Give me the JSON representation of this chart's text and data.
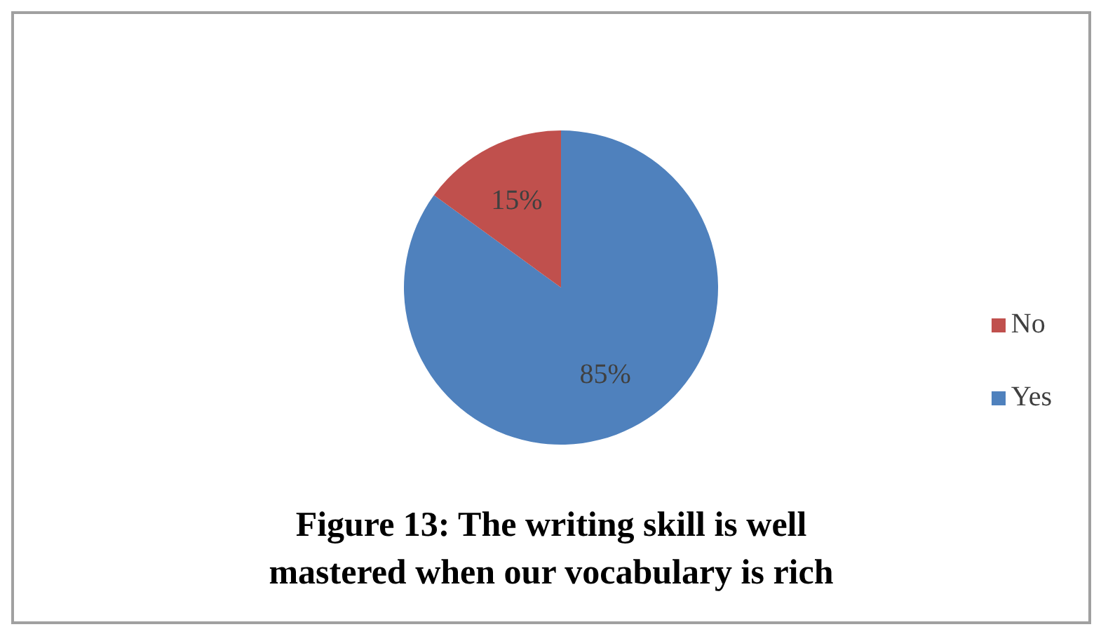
{
  "chart_data": {
    "type": "pie",
    "title": "Figure 13: The writing skill is well mastered when our vocabulary is rich",
    "categories": [
      "Yes",
      "No"
    ],
    "values": [
      85,
      15
    ],
    "colors": [
      "#4f81bd",
      "#c0504d"
    ],
    "value_labels": [
      "85%",
      "15%"
    ],
    "legend": "right"
  }
}
